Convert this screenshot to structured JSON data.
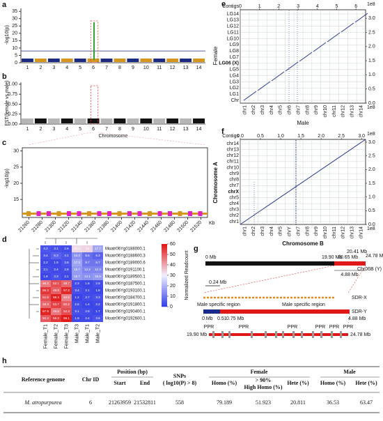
{
  "panels": {
    "a": {
      "label": "a",
      "ylabel": "-log10(p)",
      "ylim": [
        0,
        37
      ],
      "yticks": [
        0,
        5,
        10,
        15,
        20,
        25,
        30,
        35
      ],
      "threshold": 8,
      "chromosomes": [
        "1",
        "2",
        "3",
        "4",
        "5",
        "6",
        "7",
        "8",
        "9",
        "10",
        "11",
        "12",
        "13",
        "14"
      ],
      "colors": [
        "#1c2a80",
        "#d4961f"
      ]
    },
    "b": {
      "label": "b",
      "ylabel": "FST(female vs male)",
      "xlabel": "Chromosome",
      "ylim": [
        0,
        1.05
      ],
      "yticks": [
        {
          "value": 0,
          "label": "0.00"
        },
        {
          "value": 0.25,
          "label": "0.25"
        },
        {
          "value": 0.5,
          "label": "0.50"
        },
        {
          "value": 0.75,
          "label": "0.75"
        },
        {
          "value": 1,
          "label": "1.00"
        }
      ],
      "chromosomes": [
        "1",
        "2",
        "3",
        "4",
        "5",
        "6",
        "7",
        "8",
        "9",
        "10",
        "11",
        "12",
        "13",
        "14"
      ],
      "colors": [
        "#b5b5b5",
        "#111111"
      ]
    },
    "c": {
      "label": "c",
      "ylabel": "-log10(p)",
      "xunit": "Kb",
      "ylim": [
        12,
        31
      ],
      "yticks": [
        15,
        20,
        25,
        30
      ],
      "xlim": [
        21250,
        21530
      ],
      "xticks": [
        21260,
        21280,
        21300,
        21320,
        21340,
        21360,
        21380,
        21400,
        21420,
        21440,
        21460,
        21480,
        21500,
        21520
      ]
    },
    "d": {
      "label": "d",
      "colorbar_label": "Normalized Readcount",
      "clim": [
        0,
        60
      ],
      "cticks": [
        0,
        10,
        20,
        30,
        40,
        50,
        60
      ],
      "samples": [
        "Female_T1",
        "Female_T2",
        "Female_T3",
        "Male_T3",
        "Male_T1",
        "Male_T2"
      ],
      "genes": [
        "Moatr06Yg0188000.1",
        "Moatr06Yg0188600.3",
        "Moatr06Yg0189000.6",
        "Moatr06Yg0191100.1",
        "Moatr06Yg0189500.1",
        "Moatr06Yg0187500.1",
        "Moatr06Yg0193100.1",
        "Moatr06Yg0184700.1",
        "Moatr06Yg0191800.1",
        "Moatr06Yg0190400.1",
        "Moatr06Yg0192600.1"
      ],
      "values": [
        [
          4.2,
          3.1,
          2.6,
          33.2,
          34.0,
          17.7
        ],
        [
          3.4,
          6.3,
          4.1,
          14.3,
          8.5,
          6.3
        ],
        [
          2.2,
          1.9,
          3.6,
          17.3,
          9.7,
          9.7
        ],
        [
          3.1,
          2.4,
          2.8,
          15.7,
          12.2,
          12.3
        ],
        [
          1.8,
          3.3,
          2.1,
          15.7,
          14.1,
          15.5
        ],
        [
          46.2,
          52.1,
          48.7,
          2.3,
          1.6,
          2.9
        ],
        [
          55.3,
          49.8,
          57.2,
          3.4,
          2.1,
          1.8
        ],
        [
          51.6,
          58.4,
          44.9,
          1.2,
          2.7,
          3.3
        ],
        [
          48.3,
          53.7,
          50.2,
          2.6,
          1.4,
          2.2
        ],
        [
          57.9,
          46.6,
          52.3,
          3.1,
          2.8,
          1.7
        ],
        [
          50.4,
          55.2,
          59.1,
          1.9,
          2.4,
          3.6
        ]
      ]
    },
    "e": {
      "label": "e",
      "xlabel": "Male",
      "ylabel": "Female",
      "top_label": "Contigs",
      "scale": "1e8",
      "xlim": [
        0,
        6.5
      ],
      "xticks": [
        0,
        1,
        2,
        3,
        4,
        5,
        6
      ],
      "ylim": [
        0,
        3.3
      ],
      "yticks": [
        {
          "value": 0,
          "label": "0.0"
        },
        {
          "value": 0.5,
          "label": "0.5"
        },
        {
          "value": 1,
          "label": "1.0"
        },
        {
          "value": 1.5,
          "label": "1.5"
        },
        {
          "value": 2,
          "label": "2.0"
        },
        {
          "value": 2.5,
          "label": "2.5"
        },
        {
          "value": 3,
          "label": "3.0"
        }
      ],
      "rows": [
        "LG14",
        "LG13",
        "LG12",
        "LG11",
        "LG10",
        "LG9",
        "LG8",
        "LG7",
        "LG06 (X)",
        "LG5",
        "LG4",
        "LG3",
        "LG2",
        "LG1",
        "Chr"
      ],
      "columns": [
        "chr1",
        "chr2",
        "chr3",
        "chr4",
        "chr5",
        "chr6",
        "chr7",
        "chr8",
        "chr9",
        "chr10",
        "chr11",
        "chr12",
        "chr13",
        "chr14"
      ]
    },
    "f": {
      "label": "f",
      "xlabel": "Chromosome B",
      "ylabel": "Chromosome A",
      "top_label": "Contigs",
      "scale": "1e8",
      "xlim": [
        0,
        3.1
      ],
      "xticks": [
        {
          "value": 0,
          "label": "0.0"
        },
        {
          "value": 0.5,
          "label": "0.5"
        },
        {
          "value": 1,
          "label": "1.0"
        },
        {
          "value": 1.5,
          "label": "1.5"
        },
        {
          "value": 2,
          "label": "2.0"
        },
        {
          "value": 2.5,
          "label": "2.5"
        },
        {
          "value": 3,
          "label": "3.0"
        }
      ],
      "ylim": [
        0,
        3.1
      ],
      "yticks": [
        {
          "value": 0,
          "label": "0.0"
        },
        {
          "value": 0.5,
          "label": "0.5"
        },
        {
          "value": 1,
          "label": "1.0"
        },
        {
          "value": 1.5,
          "label": "1.5"
        },
        {
          "value": 2,
          "label": "2.0"
        },
        {
          "value": 2.5,
          "label": "2.5"
        },
        {
          "value": 3,
          "label": "3.0"
        }
      ],
      "rows": [
        "chr14",
        "chr13",
        "chr12",
        "chr11",
        "chr10",
        "chr9",
        "chr8",
        "chr7",
        "chrX",
        "chr5",
        "chr4",
        "chr3",
        "chr2",
        "chr1"
      ],
      "columns": [
        "chr1",
        "chr2",
        "chr3",
        "chr4",
        "chr5",
        "chrY",
        "chr7",
        "chr8",
        "chr9",
        "chr10",
        "chr11",
        "chr12",
        "chr13",
        "chr14"
      ]
    },
    "g": {
      "label": "g",
      "start": "0 Mb",
      "left": "19.90 Mb",
      "mid": "20.65 Mb",
      "upper": "20.41 Mb",
      "end": "24.78 Mb",
      "chrom": "Chr06B (Y)",
      "span": "4.88 Mb",
      "small": "0.24 Mb",
      "sdrx": "SDR-X",
      "sdry": "SDR-Y",
      "msr1": "Male specific region",
      "msr2": "Male specific region",
      "y0": "0 Mb",
      "y1": "0.51",
      "y2": "0.75 Mb",
      "y3": "4.88 Mb",
      "gleft": "19.90 Mb",
      "gright": "24.78 Mb",
      "ppr": [
        "PPR",
        "PPR",
        "PPR",
        "PPR",
        "PPR",
        "PPR"
      ]
    },
    "h": {
      "label": "h",
      "header": {
        "reference": "Reference genome",
        "chr": "Chr ID",
        "position": "Position (bp)",
        "start": "Start",
        "end": "End",
        "snps": [
          "SNPs",
          "( log10(P) > 8)"
        ],
        "female": "Female",
        "homo": "Homo (%)",
        "high_homo": [
          "> 90%",
          "High Homo (%)"
        ],
        "hete": "Hete (%)",
        "male": "Male",
        "male_homo": "Homo (%)",
        "male_hete": "Hete (%)"
      },
      "rows": [
        [
          "M. atropurpurea",
          "6",
          "21263959",
          "21532811",
          "558",
          "79.189",
          "51.923",
          "20.811",
          "36.53",
          "63.47"
        ]
      ]
    }
  }
}
